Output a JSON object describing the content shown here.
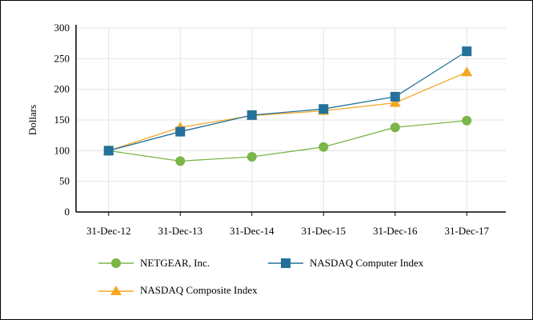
{
  "chart_data": {
    "type": "line",
    "ylabel": "Dollars",
    "xlabel": "",
    "ylim": [
      0,
      300
    ],
    "yticks": [
      "0",
      "50",
      "100",
      "150",
      "200",
      "250",
      "300"
    ],
    "categories": [
      "31-Dec-12",
      "31-Dec-13",
      "31-Dec-14",
      "31-Dec-15",
      "31-Dec-16",
      "31-Dec-17"
    ],
    "grid": true,
    "legend_position": "bottom",
    "series": [
      {
        "name": "NETGEAR, Inc.",
        "marker": "circle",
        "color": "#7ab648",
        "values": [
          100,
          83,
          90,
          106,
          138,
          149
        ]
      },
      {
        "name": "NASDAQ Computer Index",
        "marker": "square",
        "color": "#23719a",
        "values": [
          100,
          131,
          158,
          168,
          188,
          262
        ]
      },
      {
        "name": "NASDAQ Composite Index",
        "marker": "triangle",
        "color": "#f5a623",
        "values": [
          100,
          138,
          157,
          165,
          178,
          228
        ]
      }
    ]
  }
}
